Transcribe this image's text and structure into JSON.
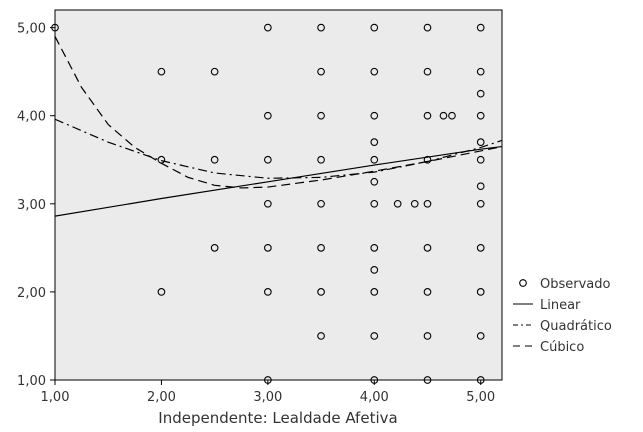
{
  "chart_data": {
    "type": "scatter",
    "xlabel": "Independente: Lealdade Afetiva",
    "ylabel": "",
    "xlim": [
      1.0,
      5.2
    ],
    "ylim": [
      1.0,
      5.2
    ],
    "x_ticks": [
      "1,00",
      "2,00",
      "3,00",
      "4,00",
      "5,00"
    ],
    "y_ticks": [
      "1,00",
      "2,00",
      "3,00",
      "4,00",
      "5,00"
    ],
    "grid": false,
    "legend_position": "right",
    "plot_background": "#ebebeb",
    "series": [
      {
        "name": "Observado",
        "kind": "points",
        "marker": "circle-open",
        "points": [
          [
            1.0,
            5.0
          ],
          [
            2.0,
            4.5
          ],
          [
            2.0,
            3.5
          ],
          [
            2.0,
            2.0
          ],
          [
            2.5,
            4.5
          ],
          [
            2.5,
            3.5
          ],
          [
            2.5,
            2.5
          ],
          [
            3.0,
            5.0
          ],
          [
            3.0,
            4.0
          ],
          [
            3.0,
            3.5
          ],
          [
            3.0,
            3.0
          ],
          [
            3.0,
            2.5
          ],
          [
            3.0,
            2.0
          ],
          [
            3.0,
            1.0
          ],
          [
            3.5,
            5.0
          ],
          [
            3.5,
            4.5
          ],
          [
            3.5,
            4.0
          ],
          [
            3.5,
            3.5
          ],
          [
            3.5,
            3.0
          ],
          [
            3.5,
            2.5
          ],
          [
            3.5,
            2.0
          ],
          [
            3.5,
            1.5
          ],
          [
            4.0,
            5.0
          ],
          [
            4.0,
            4.5
          ],
          [
            4.0,
            4.0
          ],
          [
            4.0,
            3.7
          ],
          [
            4.0,
            3.5
          ],
          [
            4.0,
            3.25
          ],
          [
            4.0,
            3.0
          ],
          [
            4.0,
            2.5
          ],
          [
            4.0,
            2.25
          ],
          [
            4.0,
            2.0
          ],
          [
            4.0,
            1.5
          ],
          [
            4.0,
            1.0
          ],
          [
            4.22,
            3.0
          ],
          [
            4.38,
            3.0
          ],
          [
            4.5,
            5.0
          ],
          [
            4.5,
            4.5
          ],
          [
            4.5,
            4.0
          ],
          [
            4.5,
            3.5
          ],
          [
            4.5,
            3.0
          ],
          [
            4.5,
            2.5
          ],
          [
            4.5,
            2.0
          ],
          [
            4.5,
            1.5
          ],
          [
            4.5,
            1.0
          ],
          [
            4.65,
            4.0
          ],
          [
            4.73,
            4.0
          ],
          [
            5.0,
            5.0
          ],
          [
            5.0,
            4.5
          ],
          [
            5.0,
            4.25
          ],
          [
            5.0,
            4.0
          ],
          [
            5.0,
            3.7
          ],
          [
            5.0,
            3.5
          ],
          [
            5.0,
            3.2
          ],
          [
            5.0,
            3.0
          ],
          [
            5.0,
            2.5
          ],
          [
            5.0,
            2.0
          ],
          [
            5.0,
            1.5
          ],
          [
            5.0,
            1.0
          ]
        ]
      },
      {
        "name": "Linear",
        "kind": "line",
        "dash": "solid",
        "x": [
          1.0,
          2.0,
          3.0,
          4.0,
          5.0,
          5.2
        ],
        "y": [
          2.86,
          3.06,
          3.25,
          3.44,
          3.62,
          3.65
        ]
      },
      {
        "name": "Quadrático",
        "kind": "line",
        "dash": "dashdot",
        "x": [
          1.0,
          1.5,
          2.0,
          2.5,
          3.0,
          3.5,
          4.0,
          4.5,
          5.0,
          5.2
        ],
        "y": [
          3.96,
          3.7,
          3.49,
          3.35,
          3.29,
          3.3,
          3.36,
          3.48,
          3.64,
          3.72
        ]
      },
      {
        "name": "Cúbico",
        "kind": "line",
        "dash": "dashed",
        "x": [
          1.0,
          1.25,
          1.5,
          1.75,
          2.0,
          2.25,
          2.5,
          2.75,
          3.0,
          3.5,
          4.0,
          4.5,
          5.0,
          5.2
        ],
        "y": [
          4.9,
          4.32,
          3.9,
          3.64,
          3.46,
          3.3,
          3.21,
          3.18,
          3.19,
          3.27,
          3.37,
          3.48,
          3.6,
          3.65
        ]
      }
    ]
  }
}
